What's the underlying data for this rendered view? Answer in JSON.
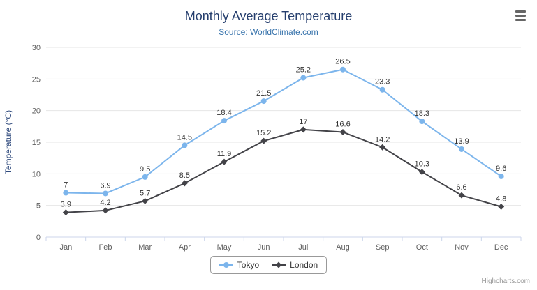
{
  "chart_data": {
    "type": "line",
    "title": "Monthly Average Temperature",
    "subtitle": "Source: WorldClimate.com",
    "xlabel": "",
    "ylabel": "Temperature (°C)",
    "ylim": [
      0,
      30
    ],
    "ytick_interval": 5,
    "grid": true,
    "legend_position": "bottom",
    "categories": [
      "Jan",
      "Feb",
      "Mar",
      "Apr",
      "May",
      "Jun",
      "Jul",
      "Aug",
      "Sep",
      "Oct",
      "Nov",
      "Dec"
    ],
    "series": [
      {
        "name": "Tokyo",
        "color": "#7cb5ec",
        "marker": "circle",
        "values": [
          7,
          6.9,
          9.5,
          14.5,
          18.4,
          21.5,
          25.2,
          26.5,
          23.3,
          18.3,
          13.9,
          9.6
        ]
      },
      {
        "name": "London",
        "color": "#434348",
        "marker": "diamond",
        "values": [
          3.9,
          4.2,
          5.7,
          8.5,
          11.9,
          15.2,
          17,
          16.6,
          14.2,
          10.3,
          6.6,
          4.8
        ]
      }
    ],
    "credits": "Highcharts.com"
  },
  "icons": {
    "menu": "hamburger-menu-icon"
  }
}
